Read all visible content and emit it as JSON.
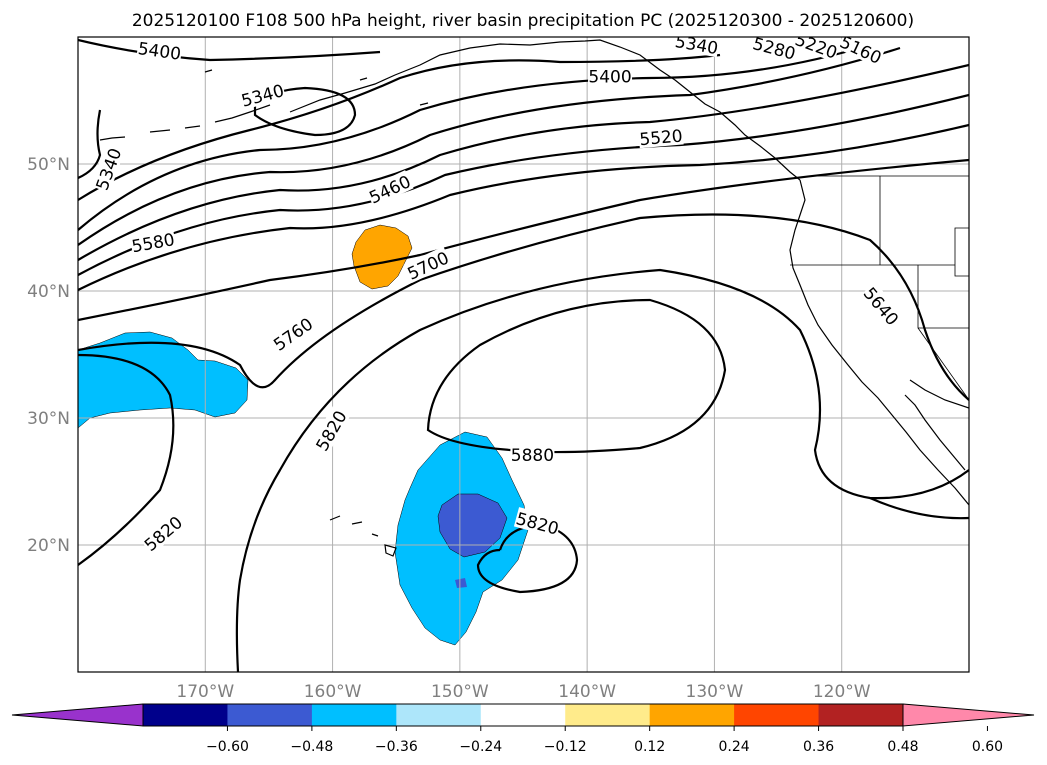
{
  "title": "2025120100 F108 500 hPa height, river basin precipitation PC (2025120300 - 2025120600)",
  "map": {
    "lon_range": [
      -180,
      -110
    ],
    "lat_range": [
      10,
      60
    ],
    "lat_ticks": [
      {
        "lat": 50,
        "label": "50°N"
      },
      {
        "lat": 40,
        "label": "40°N"
      },
      {
        "lat": 30,
        "label": "30°N"
      },
      {
        "lat": 20,
        "label": "20°N"
      }
    ],
    "lon_ticks": [
      {
        "lon": -170,
        "label": "170°W"
      },
      {
        "lon": -160,
        "label": "160°W"
      },
      {
        "lon": -150,
        "label": "150°W"
      },
      {
        "lon": -140,
        "label": "140°W"
      },
      {
        "lon": -130,
        "label": "130°W"
      },
      {
        "lon": -120,
        "label": "120°W"
      }
    ],
    "grid": true
  },
  "contours": {
    "color": "#000000",
    "labels": [
      {
        "text": "5400",
        "lon": -173.6,
        "lat": 58.9,
        "rot": 8
      },
      {
        "text": "5340",
        "lon": -165.5,
        "lat": 55.4,
        "rot": -15
      },
      {
        "text": "5340",
        "lon": -177.6,
        "lat": 49.6,
        "rot": -70
      },
      {
        "text": "5400",
        "lon": -138.2,
        "lat": 56.9,
        "rot": 0
      },
      {
        "text": "5340",
        "lon": -131.4,
        "lat": 59.4,
        "rot": 10
      },
      {
        "text": "5280",
        "lon": -125.3,
        "lat": 59.1,
        "rot": 15
      },
      {
        "text": "5220",
        "lon": -122.0,
        "lat": 59.3,
        "rot": 20
      },
      {
        "text": "5160",
        "lon": -118.5,
        "lat": 59.0,
        "rot": 25
      },
      {
        "text": "5520",
        "lon": -134.2,
        "lat": 52.1,
        "rot": -5
      },
      {
        "text": "5460",
        "lon": -155.5,
        "lat": 48.0,
        "rot": -25
      },
      {
        "text": "5580",
        "lon": -174.1,
        "lat": 43.8,
        "rot": -10
      },
      {
        "text": "5700",
        "lon": -152.5,
        "lat": 42.0,
        "rot": -25
      },
      {
        "text": "5760",
        "lon": -163.1,
        "lat": 36.6,
        "rot": -35
      },
      {
        "text": "5640",
        "lon": -116.9,
        "lat": 38.8,
        "rot": 50
      },
      {
        "text": "5820",
        "lon": -160.1,
        "lat": 29.0,
        "rot": -60
      },
      {
        "text": "5880",
        "lon": -144.3,
        "lat": 27.1,
        "rot": 0
      },
      {
        "text": "5820",
        "lon": -173.3,
        "lat": 20.9,
        "rot": -40
      },
      {
        "text": "5820",
        "lon": -143.9,
        "lat": 21.7,
        "rot": 15
      }
    ]
  },
  "shading": [
    {
      "label": "orange-positive-anomaly",
      "color": "#ffa500"
    },
    {
      "label": "light-blue-negative-anomaly",
      "color": "#00bfff"
    },
    {
      "label": "royal-blue-negative-anomaly",
      "color": "#3c5ad2"
    }
  ],
  "colorbar": {
    "colors": [
      "#9932cc",
      "#00008b",
      "#3c5ad2",
      "#00bfff",
      "#ade6fa",
      "#ffffff",
      "#ffeb8b",
      "#ffa500",
      "#ff4500",
      "#b22222",
      "#ff88aa"
    ],
    "tick_labels": [
      "−0.60",
      "−0.48",
      "−0.36",
      "−0.24",
      "−0.12",
      "0.12",
      "0.24",
      "0.36",
      "0.48",
      "0.60"
    ]
  }
}
